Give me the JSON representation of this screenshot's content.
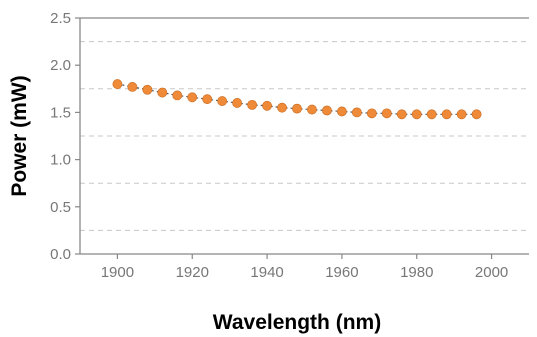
{
  "chart_data": {
    "type": "scatter",
    "title": "",
    "xlabel": "Wavelength (nm)",
    "ylabel": "Power (mW)",
    "xlim": [
      1890,
      2010
    ],
    "ylim": [
      0,
      2.5
    ],
    "xticks": [
      "1900",
      "1920",
      "1940",
      "1960",
      "1980",
      "2000"
    ],
    "yticks": [
      "0.0",
      "0.5",
      "1.0",
      "1.5",
      "2.0",
      "2.5"
    ],
    "grid": "horizontal-dashed",
    "series": [
      {
        "color": "#ee8a38",
        "line_style": "dotted",
        "x": [
          1900,
          1904,
          1908,
          1912,
          1916,
          1920,
          1924,
          1928,
          1932,
          1936,
          1940,
          1944,
          1948,
          1952,
          1956,
          1960,
          1964,
          1968,
          1972,
          1976,
          1980,
          1984,
          1988,
          1992,
          1996
        ],
        "y": [
          1.8,
          1.77,
          1.74,
          1.71,
          1.68,
          1.66,
          1.64,
          1.62,
          1.6,
          1.58,
          1.57,
          1.55,
          1.54,
          1.53,
          1.52,
          1.51,
          1.5,
          1.49,
          1.49,
          1.48,
          1.48,
          1.48,
          1.48,
          1.48,
          1.48
        ]
      }
    ]
  }
}
